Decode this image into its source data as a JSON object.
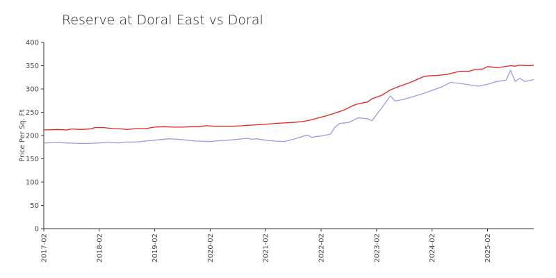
{
  "chart_data": {
    "type": "line",
    "title": "Reserve at Doral East vs Doral",
    "xlabel": "",
    "ylabel": "Price Per Sq. Ft",
    "ylim": [
      0,
      400
    ],
    "yticks": [
      0,
      50,
      100,
      150,
      200,
      250,
      300,
      350,
      400
    ],
    "xlim": [
      "2017-02",
      "2025-12"
    ],
    "xticks": [
      "2017-02",
      "2018-02",
      "2019-02",
      "2020-02",
      "2021-02",
      "2022-02",
      "2023-02",
      "2024-02",
      "2025-02"
    ],
    "grid": false,
    "legend": "none",
    "series": [
      {
        "color": "#e8201e",
        "points": [
          [
            "2017-02",
            212
          ],
          [
            "2017-05",
            213
          ],
          [
            "2017-07",
            212
          ],
          [
            "2017-08",
            214
          ],
          [
            "2017-10",
            213
          ],
          [
            "2017-12",
            214
          ],
          [
            "2018-01",
            217
          ],
          [
            "2018-03",
            217
          ],
          [
            "2018-05",
            215
          ],
          [
            "2018-07",
            214
          ],
          [
            "2018-08",
            213
          ],
          [
            "2018-10",
            215
          ],
          [
            "2018-12",
            215
          ],
          [
            "2019-02",
            218
          ],
          [
            "2019-04",
            219
          ],
          [
            "2019-06",
            218
          ],
          [
            "2019-08",
            218
          ],
          [
            "2019-10",
            219
          ],
          [
            "2019-12",
            219
          ],
          [
            "2020-01",
            221
          ],
          [
            "2020-03",
            220
          ],
          [
            "2020-05",
            220
          ],
          [
            "2020-07",
            220
          ],
          [
            "2020-09",
            221
          ],
          [
            "2020-10",
            222
          ],
          [
            "2020-12",
            223
          ],
          [
            "2021-02",
            224
          ],
          [
            "2021-04",
            226
          ],
          [
            "2021-06",
            227
          ],
          [
            "2021-08",
            228
          ],
          [
            "2021-10",
            230
          ],
          [
            "2021-11",
            232
          ],
          [
            "2021-12",
            234
          ],
          [
            "2022-01",
            237
          ],
          [
            "2022-03",
            242
          ],
          [
            "2022-05",
            248
          ],
          [
            "2022-07",
            255
          ],
          [
            "2022-09",
            265
          ],
          [
            "2022-10",
            268
          ],
          [
            "2022-12",
            272
          ],
          [
            "2023-01",
            279
          ],
          [
            "2023-03",
            286
          ],
          [
            "2023-05",
            298
          ],
          [
            "2023-07",
            306
          ],
          [
            "2023-09",
            313
          ],
          [
            "2023-10",
            317
          ],
          [
            "2023-12",
            326
          ],
          [
            "2024-01",
            328
          ],
          [
            "2024-03",
            329
          ],
          [
            "2024-05",
            331
          ],
          [
            "2024-06",
            333
          ],
          [
            "2024-08",
            338
          ],
          [
            "2024-10",
            338
          ],
          [
            "2024-11",
            341
          ],
          [
            "2025-01",
            343
          ],
          [
            "2025-02",
            348
          ],
          [
            "2025-04",
            346
          ],
          [
            "2025-05",
            347
          ],
          [
            "2025-07",
            350
          ],
          [
            "2025-08",
            349
          ],
          [
            "2025-09",
            351
          ],
          [
            "2025-11",
            350
          ],
          [
            "2025-12",
            351
          ]
        ]
      },
      {
        "color": "#9a98ef",
        "points": [
          [
            "2017-02",
            184
          ],
          [
            "2017-05",
            185
          ],
          [
            "2017-07",
            184
          ],
          [
            "2017-10",
            183
          ],
          [
            "2017-12",
            183
          ],
          [
            "2018-02",
            184
          ],
          [
            "2018-04",
            186
          ],
          [
            "2018-06",
            184
          ],
          [
            "2018-08",
            186
          ],
          [
            "2018-10",
            186
          ],
          [
            "2018-12",
            188
          ],
          [
            "2019-02",
            190
          ],
          [
            "2019-05",
            193
          ],
          [
            "2019-07",
            192
          ],
          [
            "2019-09",
            190
          ],
          [
            "2019-11",
            188
          ],
          [
            "2020-02",
            187
          ],
          [
            "2020-04",
            189
          ],
          [
            "2020-06",
            190
          ],
          [
            "2020-08",
            192
          ],
          [
            "2020-10",
            194
          ],
          [
            "2020-11",
            192
          ],
          [
            "2020-12",
            193
          ],
          [
            "2021-02",
            190
          ],
          [
            "2021-04",
            188
          ],
          [
            "2021-06",
            187
          ],
          [
            "2021-08",
            192
          ],
          [
            "2021-10",
            198
          ],
          [
            "2021-11",
            201
          ],
          [
            "2021-12",
            196
          ],
          [
            "2022-01",
            198
          ],
          [
            "2022-02",
            199
          ],
          [
            "2022-04",
            203
          ],
          [
            "2022-05",
            218
          ],
          [
            "2022-06",
            226
          ],
          [
            "2022-08",
            228
          ],
          [
            "2022-10",
            238
          ],
          [
            "2022-12",
            236
          ],
          [
            "2023-01",
            232
          ],
          [
            "2023-03",
            258
          ],
          [
            "2023-05",
            285
          ],
          [
            "2023-06",
            274
          ],
          [
            "2023-08",
            278
          ],
          [
            "2023-10",
            284
          ],
          [
            "2023-12",
            290
          ],
          [
            "2024-02",
            297
          ],
          [
            "2024-04",
            304
          ],
          [
            "2024-06",
            314
          ],
          [
            "2024-08",
            312
          ],
          [
            "2024-10",
            309
          ],
          [
            "2024-12",
            306
          ],
          [
            "2025-02",
            310
          ],
          [
            "2025-04",
            316
          ],
          [
            "2025-06",
            319
          ],
          [
            "2025-07",
            340
          ],
          [
            "2025-08",
            316
          ],
          [
            "2025-09",
            323
          ],
          [
            "2025-10",
            316
          ],
          [
            "2025-12",
            320
          ]
        ]
      }
    ]
  }
}
